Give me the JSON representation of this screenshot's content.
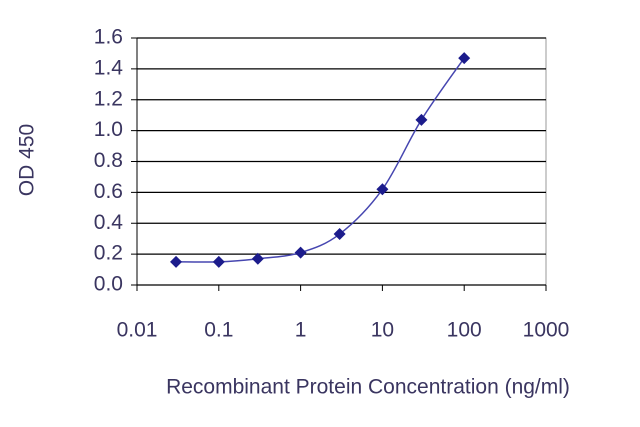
{
  "chart_data": {
    "type": "line",
    "x_label": "Recombinant Protein Concentration (ng/ml)",
    "y_label": "OD 450",
    "x": [
      0.03,
      0.1,
      0.3,
      1,
      3,
      10,
      30,
      100
    ],
    "series": [
      {
        "color": "#1c1c8c",
        "values": [
          0.15,
          0.15,
          0.17,
          0.21,
          0.33,
          0.62,
          1.07,
          1.47
        ]
      }
    ],
    "xlog": true,
    "xlim": [
      0.01,
      1000
    ],
    "xticks": [
      0.01,
      0.1,
      1,
      10,
      100,
      1000
    ],
    "ylim": [
      0,
      1.6
    ],
    "yticks": [
      {
        "value": 0,
        "label": "0.0"
      },
      0.2,
      0.4,
      0.6,
      0.8,
      {
        "value": 1,
        "label": "1.0"
      },
      1.2,
      1.4,
      1.6
    ],
    "grid": true
  }
}
